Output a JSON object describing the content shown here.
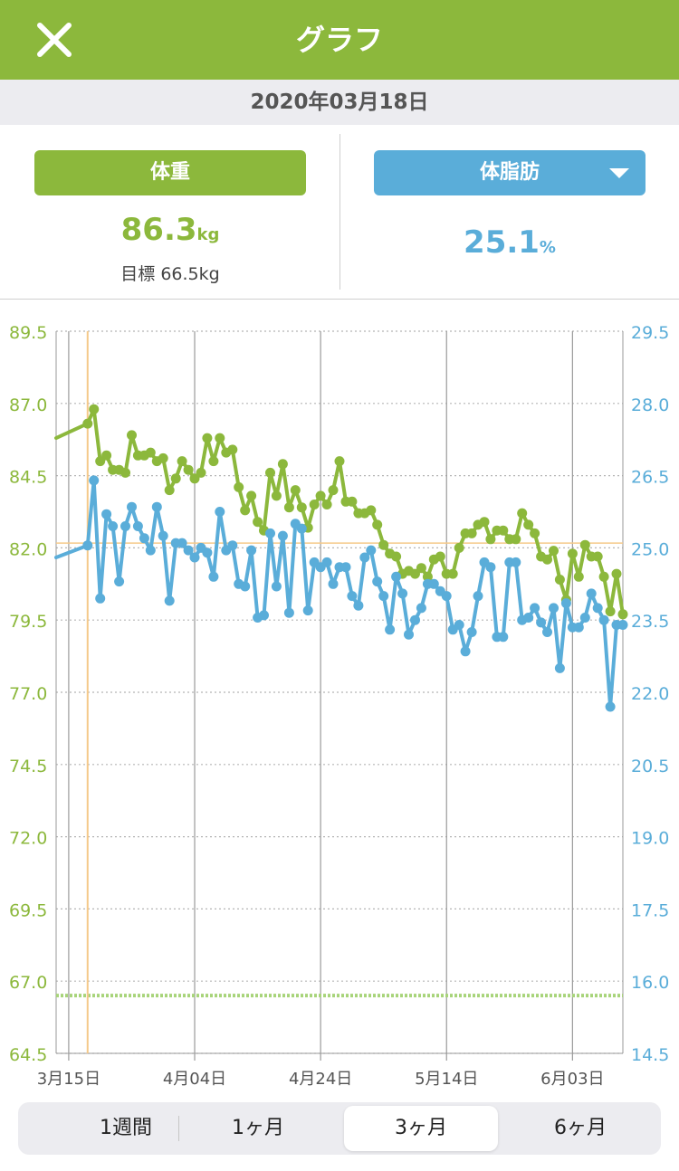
{
  "header": {
    "title": "グラフ"
  },
  "date_bar": {
    "date": "2020年03月18日"
  },
  "summary": {
    "weight": {
      "label": "体重",
      "value": "86.3",
      "unit": "kg",
      "goal": "目標 66.5kg"
    },
    "fat": {
      "label": "体脂肪",
      "value": "25.1",
      "unit": "%"
    }
  },
  "period": {
    "options": [
      "1週間",
      "1ヶ月",
      "3ヶ月",
      "6ヶ月"
    ],
    "selected_index": 2
  },
  "colors": {
    "accent": "#8cb83c",
    "fat": "#5aadd9",
    "goal": "#a8d47a",
    "cursor": "#f5c98a"
  },
  "chart_data": {
    "type": "line",
    "x_tick_labels": [
      "3月15日",
      "4月04日",
      "4月24日",
      "5月14日",
      "6月03日"
    ],
    "x_tick_days": [
      0,
      20,
      40,
      60,
      80
    ],
    "x_range_days": [
      -2,
      88
    ],
    "y_left": {
      "min": 64.5,
      "max": 89.5,
      "ticks": [
        "89.5",
        "87.0",
        "84.5",
        "82.0",
        "79.5",
        "77.0",
        "74.5",
        "72.0",
        "69.5",
        "67.0",
        "64.5"
      ]
    },
    "y_right": {
      "min": 14.5,
      "max": 29.5,
      "ticks": [
        "29.5",
        "28.0",
        "26.5",
        "25.0",
        "23.5",
        "22.0",
        "20.5",
        "19.0",
        "17.5",
        "16.0",
        "14.5"
      ]
    },
    "goal_weight": 66.5,
    "selected_day": 3,
    "selected_weight": 86.3,
    "selected_fat": 25.1,
    "series": [
      {
        "axis": "left",
        "x": [
          -2,
          3,
          4,
          5,
          6,
          7,
          8,
          9,
          10,
          11,
          12,
          13,
          14,
          15,
          16,
          17,
          18,
          19,
          20,
          21,
          22,
          23,
          24,
          25,
          26,
          27,
          28,
          29,
          30,
          31,
          32,
          33,
          34,
          35,
          36,
          37,
          38,
          39,
          40,
          41,
          42,
          43,
          44,
          45,
          46,
          47,
          48,
          49,
          50,
          51,
          52,
          53,
          54,
          55,
          56,
          57,
          58,
          59,
          60,
          61,
          62,
          63,
          64,
          65,
          66,
          67,
          68,
          69,
          70,
          71,
          72,
          73,
          74,
          75,
          76,
          77,
          78,
          79,
          80,
          81,
          82,
          83,
          84,
          85,
          86,
          87
        ],
        "values": [
          85.8,
          86.3,
          86.8,
          85.0,
          85.2,
          84.7,
          84.7,
          84.6,
          85.9,
          85.2,
          85.2,
          85.3,
          85.0,
          85.1,
          84.0,
          84.4,
          85.0,
          84.7,
          84.4,
          84.6,
          85.8,
          85.0,
          85.8,
          85.3,
          85.4,
          84.1,
          83.3,
          83.8,
          82.9,
          82.6,
          84.6,
          83.8,
          84.9,
          83.4,
          84.0,
          83.4,
          82.7,
          83.5,
          83.8,
          83.5,
          84.0,
          85.0,
          83.6,
          83.6,
          83.2,
          83.2,
          83.3,
          82.8,
          82.1,
          81.8,
          81.7,
          81.1,
          81.2,
          81.1,
          81.3,
          81.0,
          81.6,
          81.7,
          81.1,
          81.1,
          82.0,
          82.5,
          82.5,
          82.8,
          82.9,
          82.3,
          82.6,
          82.6,
          82.3,
          82.3,
          83.2,
          82.8,
          82.5,
          81.7,
          81.6,
          81.9,
          80.9,
          80.2,
          81.8,
          81.0,
          82.1,
          81.7,
          81.7,
          81.0,
          79.8,
          81.1
        ],
        "values_tail": [
          79.7
        ]
      },
      {
        "axis": "right",
        "x": [
          -2,
          3,
          4,
          5,
          6,
          7,
          8,
          9,
          10,
          11,
          12,
          13,
          14,
          15,
          16,
          17,
          18,
          19,
          20,
          21,
          22,
          23,
          24,
          25,
          26,
          27,
          28,
          29,
          30,
          31,
          32,
          33,
          34,
          35,
          36,
          37,
          38,
          39,
          40,
          41,
          42,
          43,
          44,
          45,
          46,
          47,
          48,
          49,
          50,
          51,
          52,
          53,
          54,
          55,
          56,
          57,
          58,
          59,
          60,
          61,
          62,
          63,
          64,
          65,
          66,
          67,
          68,
          69,
          70,
          71,
          72,
          73,
          74,
          75,
          76,
          77,
          78,
          79,
          80,
          81,
          82,
          83,
          84,
          85,
          86,
          87,
          88
        ],
        "values": [
          24.8,
          25.05,
          26.4,
          23.95,
          25.7,
          25.45,
          24.3,
          25.45,
          25.85,
          25.45,
          25.2,
          24.95,
          25.85,
          25.25,
          23.9,
          25.1,
          25.1,
          24.95,
          24.8,
          25.0,
          24.9,
          24.4,
          25.75,
          24.95,
          25.05,
          24.25,
          24.2,
          24.95,
          23.55,
          23.6,
          25.3,
          24.2,
          25.25,
          23.65,
          25.5,
          25.4,
          23.7,
          24.7,
          24.6,
          24.7,
          24.25,
          24.6,
          24.6,
          24.0,
          23.8,
          24.8,
          24.95,
          24.3,
          24.0,
          23.3,
          24.4,
          24.05,
          23.2,
          23.5,
          23.75,
          24.25,
          24.25,
          24.1,
          24.0,
          23.3,
          23.4,
          22.85,
          23.25,
          24.0,
          24.7,
          24.6,
          23.15,
          23.15,
          24.7,
          24.7,
          23.5,
          23.55,
          23.75,
          23.45,
          23.25,
          23.75,
          22.5,
          23.85,
          23.35,
          23.35,
          23.55,
          24.05,
          23.75,
          23.5,
          21.7,
          23.4,
          23.4
        ]
      }
    ]
  }
}
